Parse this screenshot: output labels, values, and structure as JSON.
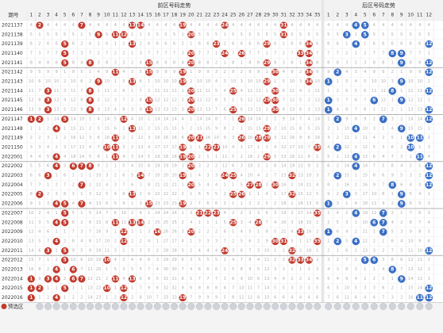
{
  "chart_data": {
    "type": "table",
    "title_front": "前区号码走势",
    "title_back": "后区号码走势",
    "period_header": "期号",
    "front_numbers": [
      1,
      2,
      3,
      4,
      5,
      6,
      7,
      8,
      9,
      10,
      11,
      12,
      13,
      14,
      15,
      16,
      17,
      18,
      19,
      20,
      21,
      22,
      23,
      24,
      25,
      26,
      27,
      28,
      29,
      30,
      31,
      32,
      33,
      34,
      35
    ],
    "back_numbers": [
      1,
      2,
      3,
      4,
      5,
      6,
      7,
      8,
      9,
      10,
      11,
      12
    ],
    "periods": [
      "2021137",
      "2021138",
      "2021139",
      "2021140",
      "2021141",
      "2021142",
      "2021143",
      "2021144",
      "2021145",
      "2021146",
      "2021147",
      "2021148",
      "2021149",
      "2021150",
      "2022001",
      "2022002",
      "2022003",
      "2022004",
      "2022005",
      "2022006",
      "2022007",
      "2022008",
      "2022009",
      "2022010",
      "2022011",
      "2022012",
      "2022013",
      "2022014",
      "2022015",
      "2022016"
    ],
    "front_draws": [
      [
        2,
        7,
        13,
        14,
        19,
        24,
        31
      ],
      [
        9,
        11,
        12,
        20,
        31
      ],
      [
        5,
        13,
        23,
        29,
        34
      ],
      [
        5,
        20,
        24,
        26,
        33,
        34
      ],
      [
        5,
        8,
        15,
        20,
        29,
        34
      ],
      [
        11,
        15,
        19,
        30,
        34
      ],
      [
        9,
        13,
        19,
        29,
        34
      ],
      [
        3,
        8,
        20,
        25,
        30
      ],
      [
        3,
        8,
        15,
        20,
        29,
        30
      ],
      [
        3,
        8,
        15,
        20,
        25,
        30
      ],
      [
        1,
        2,
        5,
        12,
        26
      ],
      [
        4,
        13,
        29
      ],
      [
        11,
        20,
        21,
        26,
        28,
        29
      ],
      [
        10,
        11,
        19,
        22,
        23,
        35
      ],
      [
        4,
        11,
        19,
        20,
        29
      ],
      [
        4,
        6,
        7,
        8,
        20
      ],
      [
        3,
        14,
        19,
        24,
        25,
        32
      ],
      [
        7,
        20,
        27,
        28,
        30
      ],
      [
        2,
        13,
        25,
        26,
        32
      ],
      [
        4,
        5,
        7,
        15,
        19
      ],
      [
        5,
        21,
        22,
        23,
        35
      ],
      [
        4,
        5,
        11,
        13,
        14,
        25,
        28
      ],
      [
        12,
        16,
        20,
        33
      ],
      [
        4,
        12,
        30,
        31,
        35
      ],
      [
        3,
        5,
        24,
        32
      ],
      [
        5,
        10,
        32,
        33,
        34
      ],
      [
        4,
        6
      ],
      [
        1,
        3,
        4,
        6,
        7,
        11,
        13
      ],
      [
        1,
        2,
        5,
        10,
        12
      ],
      [
        1,
        4,
        12,
        19
      ]
    ],
    "back_draws": [
      [
        4,
        5
      ],
      [
        3,
        5
      ],
      [
        4,
        12
      ],
      [
        8,
        9
      ],
      [
        9,
        12
      ],
      [
        2,
        12
      ],
      [
        1,
        9
      ],
      [
        8,
        12
      ],
      [
        1,
        6,
        9
      ],
      [
        1,
        12
      ],
      [
        2,
        7,
        12
      ],
      [
        4,
        9
      ],
      [
        10,
        11
      ],
      [
        2,
        10
      ],
      [
        4,
        11
      ],
      [
        4,
        12
      ],
      [
        2,
        12
      ],
      [
        8,
        12
      ],
      [
        3,
        9
      ],
      [
        1,
        9
      ],
      [
        4,
        7
      ],
      [
        6,
        7
      ],
      [
        1,
        7
      ],
      [
        2,
        4
      ],
      [
        12
      ],
      [
        5,
        6
      ],
      [
        8
      ],
      [
        9
      ],
      [
        12
      ],
      [
        11,
        12
      ]
    ],
    "footer_label": "预选区",
    "colors": {
      "front_ball": "#c23b2e",
      "back_ball": "#3a6fc4",
      "header_bg": "#f2f2f2",
      "repeat_cell": "#d8d8d8"
    },
    "grid": true
  }
}
